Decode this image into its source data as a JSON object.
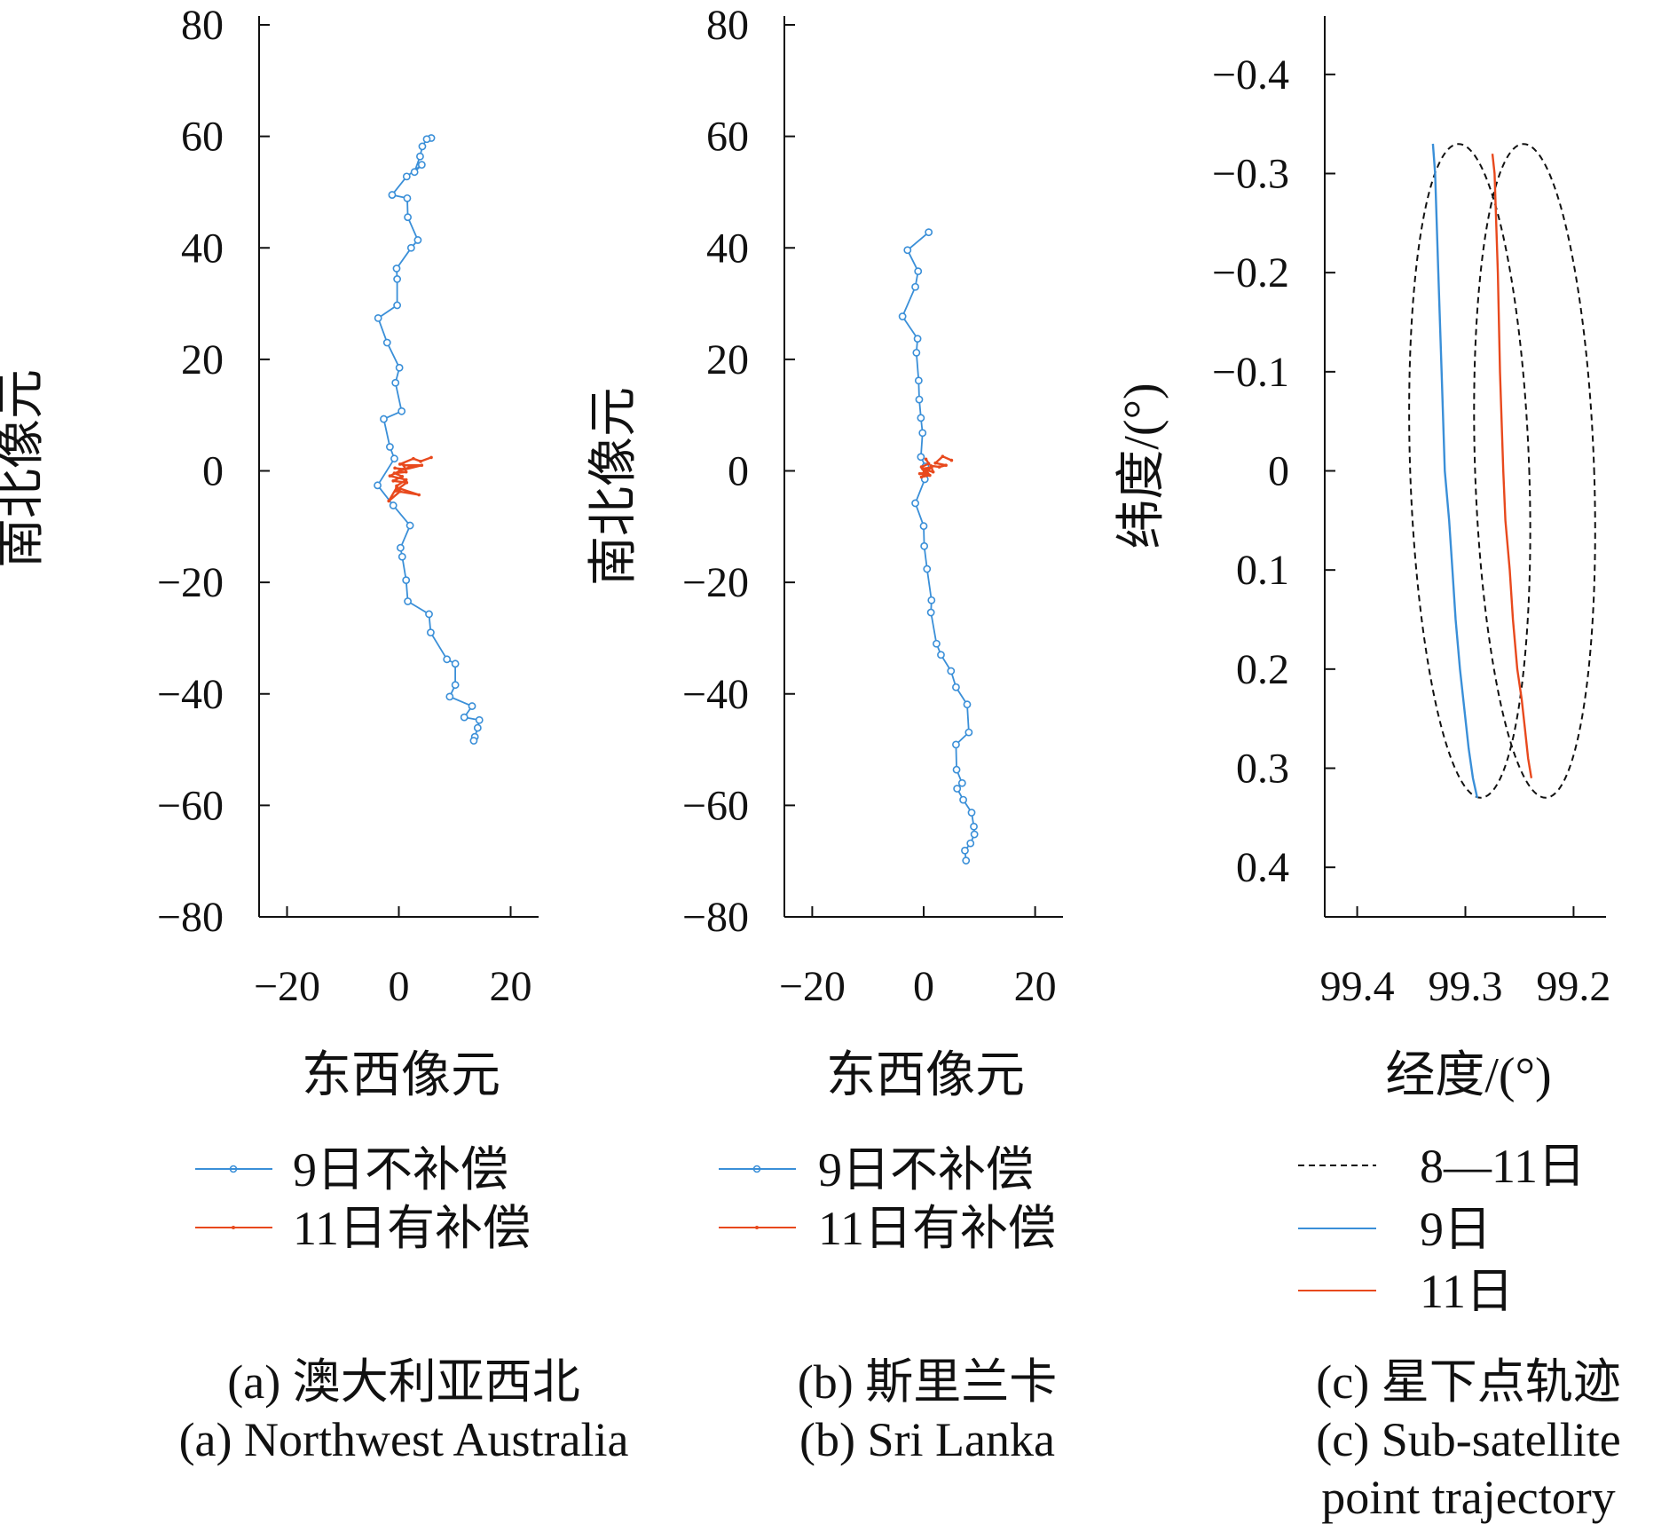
{
  "colors": {
    "blue": "#3a8fd8",
    "red": "#e8491d",
    "black": "#111111"
  },
  "chart_data": [
    {
      "id": "a",
      "type": "line",
      "xlabel": "东西像元",
      "ylabel": "南北像元",
      "xlim": [
        -25,
        25
      ],
      "ylim": [
        -80,
        80
      ],
      "xticks": [
        -20,
        0,
        20
      ],
      "yticks": [
        80,
        60,
        40,
        20,
        0,
        -20,
        -40,
        -60,
        -80
      ],
      "xtick_labels": [
        "−20",
        "0",
        "20"
      ],
      "ytick_labels": [
        "80",
        "60",
        "40",
        "20",
        "0",
        "−20",
        "−40",
        "−60",
        "−80"
      ],
      "legend": [
        "9日不补偿",
        "11日有补偿"
      ],
      "caption_cn": "(a) 澳大利亚西北",
      "caption_en": "(a) Northwest Australia",
      "series": [
        {
          "name": "9日不补偿",
          "color": "blue",
          "marker": "circle",
          "x": [
            5.8,
            5.0,
            4.2,
            3.8,
            2.8,
            4.1,
            1.4,
            -1.2,
            1.5,
            1.6,
            3.4,
            2.2,
            -0.4,
            -0.3,
            -0.3,
            -3.7,
            -2.1,
            0.1,
            -0.6,
            0.5,
            -2.7,
            -1.6,
            -0.8,
            -3.8,
            -1.0,
            2.0,
            0.3,
            0.6,
            1.3,
            1.6,
            5.4,
            5.7,
            8.6,
            10.1,
            10.1,
            9.1,
            13.1,
            11.7,
            14.4,
            14.1,
            13.6,
            13.4
          ],
          "y": [
            59.7,
            59.5,
            58.2,
            56.4,
            53.6,
            54.9,
            52.8,
            49.5,
            48.9,
            45.5,
            41.4,
            40.0,
            36.3,
            34.4,
            29.7,
            27.4,
            23.0,
            18.5,
            15.8,
            10.7,
            9.3,
            4.3,
            2.2,
            -2.6,
            -6.2,
            -9.8,
            -13.8,
            -15.4,
            -19.6,
            -23.4,
            -25.7,
            -29.0,
            -33.8,
            -34.6,
            -38.4,
            -40.5,
            -42.2,
            -44.2,
            -44.7,
            -46.1,
            -47.7,
            -48.4
          ]
        },
        {
          "name": "11日有补偿",
          "color": "red",
          "marker": "dot",
          "x": [
            5.8,
            3.9,
            2.6,
            0.2,
            2.4,
            0.1,
            4.1,
            0.9,
            1.3,
            -0.8,
            0.6,
            -1.0,
            1.4,
            -0.6,
            3.6,
            -0.4,
            -1.8,
            0.2,
            -0.4,
            1.3,
            -1.6,
            0.8,
            -0.7
          ],
          "y": [
            2.4,
            1.7,
            2.2,
            1.2,
            0.8,
            0.0,
            1.0,
            1.0,
            -0.2,
            -0.4,
            -1.0,
            -1.8,
            -2.1,
            -3.6,
            -4.3,
            -3.0,
            -5.4,
            -3.7,
            -2.7,
            -1.6,
            -0.9,
            0.3,
            0.5
          ]
        }
      ]
    },
    {
      "id": "b",
      "type": "line",
      "xlabel": "东西像元",
      "ylabel": "南北像元",
      "xlim": [
        -25,
        25
      ],
      "ylim": [
        -80,
        80
      ],
      "xticks": [
        -20,
        0,
        20
      ],
      "yticks": [
        80,
        60,
        40,
        20,
        0,
        -20,
        -40,
        -60,
        -80
      ],
      "xtick_labels": [
        "−20",
        "0",
        "20"
      ],
      "ytick_labels": [
        "80",
        "60",
        "40",
        "20",
        "0",
        "−20",
        "−40",
        "−60",
        "−80"
      ],
      "legend": [
        "9日不补偿",
        "11日有补偿"
      ],
      "caption_cn": "(b) 斯里兰卡",
      "caption_en": "(b) Sri Lanka",
      "series": [
        {
          "name": "9日不补偿",
          "color": "blue",
          "marker": "circle",
          "x": [
            0.9,
            -2.9,
            -1.0,
            -1.5,
            -3.8,
            -1.1,
            -1.3,
            -0.9,
            -0.8,
            -0.5,
            -0.2,
            -0.5,
            0.3,
            0.2,
            -1.5,
            0.0,
            0.1,
            0.6,
            1.4,
            1.3,
            2.3,
            3.1,
            4.9,
            5.8,
            7.8,
            8.1,
            5.8,
            5.9,
            6.9,
            6.0,
            7.1,
            8.6,
            9.0,
            9.1,
            8.4,
            7.4,
            7.6
          ],
          "y": [
            42.8,
            39.6,
            35.8,
            33.0,
            27.7,
            23.7,
            21.2,
            16.2,
            12.8,
            9.5,
            6.8,
            2.5,
            0.8,
            -1.5,
            -5.8,
            -9.9,
            -13.5,
            -17.6,
            -23.2,
            -25.4,
            -31.0,
            -33.0,
            -35.9,
            -38.8,
            -41.9,
            -46.9,
            -49.1,
            -53.6,
            -56.0,
            -57.0,
            -59.0,
            -61.3,
            -63.8,
            -65.2,
            -66.8,
            -68.1,
            -69.9
          ]
        },
        {
          "name": "11日有补偿",
          "color": "red",
          "marker": "dot",
          "x": [
            5.0,
            3.4,
            2.1,
            4.0,
            2.8,
            1.3,
            1.7,
            0.3,
            1.1,
            -0.4,
            0.6,
            -0.7,
            0.8,
            -0.2,
            1.4,
            0.1,
            -0.4,
            0.9,
            0.4
          ],
          "y": [
            1.9,
            2.6,
            1.4,
            1.0,
            0.7,
            0.9,
            -0.2,
            0.2,
            -0.8,
            -1.1,
            -0.3,
            -0.5,
            -0.7,
            0.4,
            0.6,
            -0.2,
            0.7,
            1.3,
            2.1
          ]
        }
      ]
    },
    {
      "id": "c",
      "type": "line",
      "xlabel": "经度/(°)",
      "ylabel": "纬度/(°)",
      "xlim": [
        99.43,
        99.17
      ],
      "ylim": [
        -0.45,
        0.45
      ],
      "xticks": [
        99.4,
        99.3,
        99.2
      ],
      "yticks": [
        -0.4,
        -0.3,
        -0.2,
        -0.1,
        0,
        0.1,
        0.2,
        0.3,
        0.4
      ],
      "xtick_labels": [
        "99.4",
        "99.3",
        "99.2"
      ],
      "ytick_labels": [
        "−0.4",
        "−0.3",
        "−0.2",
        "−0.1",
        "0",
        "0.1",
        "0.2",
        "0.3",
        "0.4"
      ],
      "legend": [
        "8—11日",
        "9日",
        "11日"
      ],
      "caption_cn": "(c) 星下点轨迹",
      "caption_en_line1": "(c) Sub-satellite",
      "caption_en_line2": "point trajectory",
      "ellipses": [
        {
          "name": "8—11日",
          "center_lon": 99.296,
          "center_lat": 0.0,
          "lon_halfwidth": 0.055,
          "lat_halfheight": 0.33
        },
        {
          "name": "8—11日",
          "center_lon": 99.236,
          "center_lat": 0.0,
          "lon_halfwidth": 0.055,
          "lat_halfheight": 0.33
        }
      ],
      "series": [
        {
          "name": "9日",
          "color": "blue",
          "lon": [
            99.33,
            99.328,
            99.325,
            99.322,
            99.319,
            99.315,
            99.312,
            99.309,
            99.305,
            99.301,
            99.297,
            99.293,
            99.289
          ],
          "lat": [
            -0.33,
            -0.3,
            -0.2,
            -0.1,
            0.0,
            0.05,
            0.1,
            0.15,
            0.2,
            0.24,
            0.28,
            0.31,
            0.33
          ]
        },
        {
          "name": "11日",
          "color": "red",
          "lon": [
            99.275,
            99.273,
            99.27,
            99.268,
            99.265,
            99.263,
            99.259,
            99.256,
            99.252,
            99.248,
            99.245,
            99.242,
            99.239
          ],
          "lat": [
            -0.32,
            -0.3,
            -0.2,
            -0.1,
            0.0,
            0.05,
            0.1,
            0.15,
            0.2,
            0.23,
            0.26,
            0.29,
            0.31
          ]
        }
      ]
    }
  ]
}
